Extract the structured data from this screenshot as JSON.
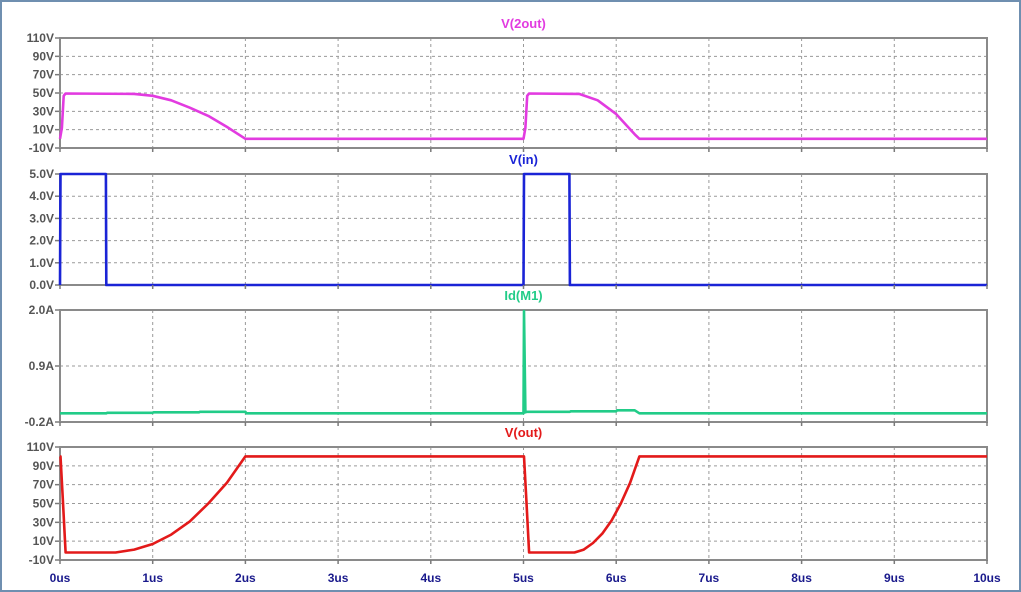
{
  "window": {
    "frame_color": "#6f8fb0",
    "background": "#ffffff"
  },
  "chart_data": {
    "type": "line",
    "x_ticks": [
      "0us",
      "1us",
      "2us",
      "3us",
      "4us",
      "5us",
      "6us",
      "7us",
      "8us",
      "9us",
      "10us"
    ],
    "x_unit": "us",
    "xlim": [
      0,
      10
    ],
    "grid": true,
    "panels": [
      {
        "title": "V(2out)",
        "color": "#e23be0",
        "ylim": [
          -10,
          110
        ],
        "yticks": [
          "-10V",
          "10V",
          "30V",
          "50V",
          "70V",
          "90V",
          "110V"
        ],
        "ytick_values": [
          -10,
          10,
          30,
          50,
          70,
          90,
          110
        ],
        "series": {
          "x": [
            0,
            0.02,
            0.04,
            0.06,
            0.8,
            1.0,
            1.2,
            1.4,
            1.6,
            1.8,
            2.0,
            5.0,
            5.02,
            5.04,
            5.06,
            5.6,
            5.8,
            6.0,
            6.2,
            6.25,
            10.0
          ],
          "y": [
            0,
            12,
            47,
            49.5,
            49,
            47,
            42,
            34,
            25,
            13,
            0,
            0,
            12,
            47,
            49.5,
            49,
            42,
            27,
            5,
            0,
            0
          ]
        }
      },
      {
        "title": "V(in)",
        "color": "#1a24d6",
        "ylim": [
          0,
          5
        ],
        "yticks": [
          "0.0V",
          "1.0V",
          "2.0V",
          "3.0V",
          "4.0V",
          "5.0V"
        ],
        "ytick_values": [
          0,
          1,
          2,
          3,
          4,
          5
        ],
        "series": {
          "x": [
            0,
            0.005,
            0.495,
            0.5,
            5.0,
            5.005,
            5.495,
            5.5,
            10.0
          ],
          "y": [
            0,
            5,
            5,
            0,
            0,
            5,
            5,
            0,
            0
          ]
        }
      },
      {
        "title": "Id(M1)",
        "color": "#22cc88",
        "ylim": [
          -0.2,
          2.0
        ],
        "yticks": [
          "-0.2A",
          "0.9A",
          "2.0A"
        ],
        "ytick_values": [
          -0.2,
          0.9,
          2.0
        ],
        "series": {
          "x": [
            0,
            0.5,
            0.51,
            1.0,
            1.01,
            1.5,
            1.51,
            2.0,
            2.01,
            5.0,
            5.005,
            5.02,
            5.04,
            5.5,
            5.51,
            6.0,
            6.01,
            6.2,
            6.25,
            10.0
          ],
          "y": [
            -0.03,
            -0.03,
            -0.02,
            -0.02,
            -0.01,
            -0.01,
            0.0,
            0.0,
            -0.03,
            -0.03,
            1.98,
            -0.01,
            0.0,
            0.0,
            0.01,
            0.01,
            0.03,
            0.03,
            -0.03,
            -0.03
          ]
        }
      },
      {
        "title": "V(out)",
        "color": "#e31a1a",
        "ylim": [
          -10,
          110
        ],
        "yticks": [
          "-10V",
          "10V",
          "30V",
          "50V",
          "70V",
          "90V",
          "110V"
        ],
        "ytick_values": [
          -10,
          10,
          30,
          50,
          70,
          90,
          110
        ],
        "series": {
          "x": [
            0,
            0.005,
            0.03,
            0.06,
            0.6,
            0.8,
            1.0,
            1.2,
            1.4,
            1.6,
            1.8,
            2.0,
            5.0,
            5.005,
            5.03,
            5.06,
            5.55,
            5.65,
            5.75,
            5.85,
            5.95,
            6.05,
            6.15,
            6.25,
            10.0
          ],
          "y": [
            100,
            100,
            55,
            -2,
            -2,
            1,
            7,
            17,
            31,
            50,
            72,
            100,
            100,
            100,
            55,
            -2,
            -2,
            1,
            8,
            18,
            32,
            50,
            72,
            100,
            100
          ]
        }
      }
    ]
  }
}
